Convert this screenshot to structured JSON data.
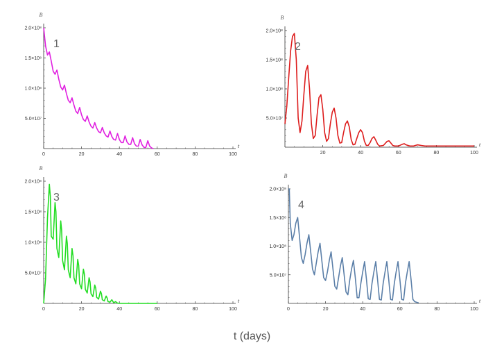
{
  "figure": {
    "caption": "t (days)"
  },
  "chart_data": [
    {
      "type": "line",
      "panel_label": "1",
      "xlabel": "t",
      "ylabel": "B",
      "xlim": [
        0,
        100
      ],
      "ylim": [
        0,
        200000000
      ],
      "xticks": [
        0,
        20,
        40,
        60,
        80,
        100
      ],
      "yticks": [
        {
          "value": 50000000,
          "label": "5.0×10⁷"
        },
        {
          "value": 100000000,
          "label": "1.0×10⁸"
        },
        {
          "value": 150000000,
          "label": "1.5×10⁸"
        },
        {
          "value": 200000000,
          "label": "2.0×10⁸"
        }
      ],
      "color": "#e020e0",
      "series": [
        {
          "x": [
            0,
            1,
            2,
            3,
            4,
            5,
            6,
            7,
            8,
            9,
            10,
            11,
            12,
            13,
            14,
            15,
            16,
            17,
            18,
            19,
            20,
            21,
            22,
            23,
            24,
            25,
            26,
            27,
            28,
            29,
            30,
            31,
            32,
            33,
            34,
            35,
            36,
            37,
            38,
            39,
            40,
            41,
            42,
            43,
            44,
            45,
            46,
            47,
            48,
            49,
            50,
            51,
            52,
            53,
            54,
            55,
            56,
            57,
            58
          ],
          "y": [
            200000000,
            170000000,
            155000000,
            160000000,
            145000000,
            128000000,
            123000000,
            130000000,
            115000000,
            102000000,
            97000000,
            105000000,
            91000000,
            80000000,
            76000000,
            84000000,
            72000000,
            62000000,
            58000000,
            68000000,
            56000000,
            48000000,
            45000000,
            54000000,
            44000000,
            37000000,
            34000000,
            43000000,
            34000000,
            28000000,
            26000000,
            35000000,
            26000000,
            21000000,
            19000000,
            29000000,
            20000000,
            15000000,
            14000000,
            25000000,
            15000000,
            10000000,
            10000000,
            21000000,
            11000000,
            7000000,
            7000000,
            18000000,
            8000000,
            4000000,
            4000000,
            15000000,
            6000000,
            2000000,
            2000000,
            13000000,
            4000000,
            1000000,
            0
          ]
        }
      ]
    },
    {
      "type": "line",
      "panel_label": "2",
      "xlabel": "t",
      "ylabel": "B",
      "xlim": [
        0,
        100
      ],
      "ylim": [
        0,
        200000000
      ],
      "xticks": [
        20,
        40,
        60,
        80,
        100
      ],
      "yticks": [
        {
          "value": 50000000,
          "label": "5.0×10⁷"
        },
        {
          "value": 100000000,
          "label": "1.0×10⁸"
        },
        {
          "value": 150000000,
          "label": "1.5×10⁸"
        },
        {
          "value": 200000000,
          "label": "2.0×10⁸"
        }
      ],
      "color": "#dd1c1c",
      "series": [
        {
          "x": [
            0,
            1,
            2,
            3,
            4,
            5,
            6,
            7,
            8,
            9,
            10,
            11,
            12,
            13,
            14,
            15,
            16,
            17,
            18,
            19,
            20,
            21,
            22,
            23,
            24,
            25,
            26,
            27,
            28,
            29,
            30,
            31,
            32,
            33,
            34,
            35,
            36,
            37,
            38,
            39,
            40,
            41,
            42,
            43,
            44,
            45,
            46,
            47,
            48,
            49,
            50,
            52,
            54,
            55,
            56,
            57,
            58,
            60,
            62,
            63,
            64,
            66,
            68,
            70,
            72,
            74,
            76,
            80,
            85,
            90,
            95,
            100
          ],
          "y": [
            40000000,
            70000000,
            120000000,
            165000000,
            190000000,
            195000000,
            150000000,
            50000000,
            25000000,
            45000000,
            90000000,
            130000000,
            140000000,
            100000000,
            40000000,
            15000000,
            20000000,
            55000000,
            85000000,
            90000000,
            65000000,
            25000000,
            10000000,
            15000000,
            40000000,
            60000000,
            67000000,
            50000000,
            20000000,
            7000000,
            8000000,
            25000000,
            40000000,
            45000000,
            35000000,
            13000000,
            4000000,
            5000000,
            15000000,
            25000000,
            30000000,
            25000000,
            10000000,
            3000000,
            3000000,
            8000000,
            15000000,
            18000000,
            12000000,
            5000000,
            2000000,
            3000000,
            10000000,
            11000000,
            7000000,
            3000000,
            2000000,
            2000000,
            5000000,
            6000000,
            4000000,
            2000000,
            2000000,
            4000000,
            3000000,
            2000000,
            2000000,
            2000000,
            2000000,
            2000000,
            2000000,
            2000000
          ]
        }
      ]
    },
    {
      "type": "line",
      "panel_label": "3",
      "xlabel": "t",
      "ylabel": "B",
      "xlim": [
        0,
        100
      ],
      "ylim": [
        0,
        200000000
      ],
      "xticks": [
        0,
        20,
        40,
        60,
        80,
        100
      ],
      "yticks": [
        {
          "value": 50000000,
          "label": "5.0×10⁷"
        },
        {
          "value": 100000000,
          "label": "1.0×10⁸"
        },
        {
          "value": 150000000,
          "label": "1.5×10⁸"
        },
        {
          "value": 200000000,
          "label": "2.0×10⁸"
        }
      ],
      "color": "#22dd22",
      "series": [
        {
          "x": [
            0,
            1,
            2,
            3,
            3.5,
            4,
            5,
            6,
            6.5,
            7,
            8,
            9,
            9.5,
            10,
            11,
            12,
            12.5,
            13,
            14,
            15,
            15.5,
            16,
            17,
            18,
            18.5,
            19,
            20,
            21,
            21.5,
            22,
            23,
            24,
            24.5,
            25,
            26,
            27,
            27.5,
            28,
            29,
            30,
            30.5,
            31,
            32,
            33,
            33.5,
            34,
            35,
            36,
            37,
            38,
            39,
            40,
            45,
            50,
            55,
            60
          ],
          "y": [
            0,
            40000000,
            140000000,
            195000000,
            175000000,
            110000000,
            105000000,
            165000000,
            150000000,
            90000000,
            75000000,
            135000000,
            120000000,
            70000000,
            55000000,
            110000000,
            98000000,
            55000000,
            42000000,
            90000000,
            78000000,
            42000000,
            32000000,
            72000000,
            62000000,
            32000000,
            24000000,
            56000000,
            48000000,
            23000000,
            17000000,
            42000000,
            35000000,
            16000000,
            11000000,
            30000000,
            25000000,
            10000000,
            7000000,
            20000000,
            16000000,
            6000000,
            4000000,
            12000000,
            9000000,
            3000000,
            2000000,
            6000000,
            1000000,
            3000000,
            500000,
            0,
            0,
            0,
            0,
            0
          ]
        }
      ]
    },
    {
      "type": "line",
      "panel_label": "4",
      "xlabel": "t",
      "ylabel": "B",
      "xlim": [
        0,
        100
      ],
      "ylim": [
        0,
        200000000
      ],
      "xticks": [
        0,
        20,
        40,
        60,
        80,
        100
      ],
      "yticks": [
        {
          "value": 50000000,
          "label": "5.0×10⁷"
        },
        {
          "value": 100000000,
          "label": "1.0×10⁸"
        },
        {
          "value": 150000000,
          "label": "1.5×10⁸"
        },
        {
          "value": 200000000,
          "label": "2.0×10⁸"
        }
      ],
      "color": "#5b7fa8",
      "series": [
        {
          "x": [
            0,
            0.5,
            1,
            2,
            3,
            4,
            5,
            6,
            7,
            8,
            9,
            10,
            11,
            12,
            13,
            14,
            15,
            16,
            17,
            18,
            19,
            20,
            21,
            22,
            23,
            24,
            25,
            26,
            27,
            28,
            29,
            30,
            31,
            32,
            33,
            34,
            35,
            36,
            37,
            38,
            39,
            40,
            41,
            42,
            43,
            44,
            45,
            46,
            47,
            48,
            49,
            50,
            51,
            52,
            53,
            54,
            55,
            56,
            57,
            58,
            59,
            60,
            61,
            62,
            63,
            64,
            65,
            66,
            67,
            68,
            69,
            70
          ],
          "y": [
            200000000,
            200000000,
            140000000,
            110000000,
            120000000,
            140000000,
            150000000,
            115000000,
            80000000,
            70000000,
            85000000,
            105000000,
            120000000,
            90000000,
            60000000,
            50000000,
            70000000,
            90000000,
            105000000,
            75000000,
            45000000,
            40000000,
            55000000,
            75000000,
            90000000,
            60000000,
            30000000,
            25000000,
            45000000,
            65000000,
            80000000,
            50000000,
            20000000,
            15000000,
            40000000,
            60000000,
            75000000,
            45000000,
            10000000,
            10000000,
            35000000,
            55000000,
            73000000,
            42000000,
            8000000,
            7000000,
            35000000,
            55000000,
            73000000,
            42000000,
            7000000,
            6000000,
            35000000,
            55000000,
            73000000,
            42000000,
            7000000,
            6000000,
            35000000,
            55000000,
            73000000,
            42000000,
            7000000,
            6000000,
            35000000,
            55000000,
            73000000,
            42000000,
            7000000,
            3000000,
            2000000,
            1000000
          ]
        }
      ]
    }
  ]
}
